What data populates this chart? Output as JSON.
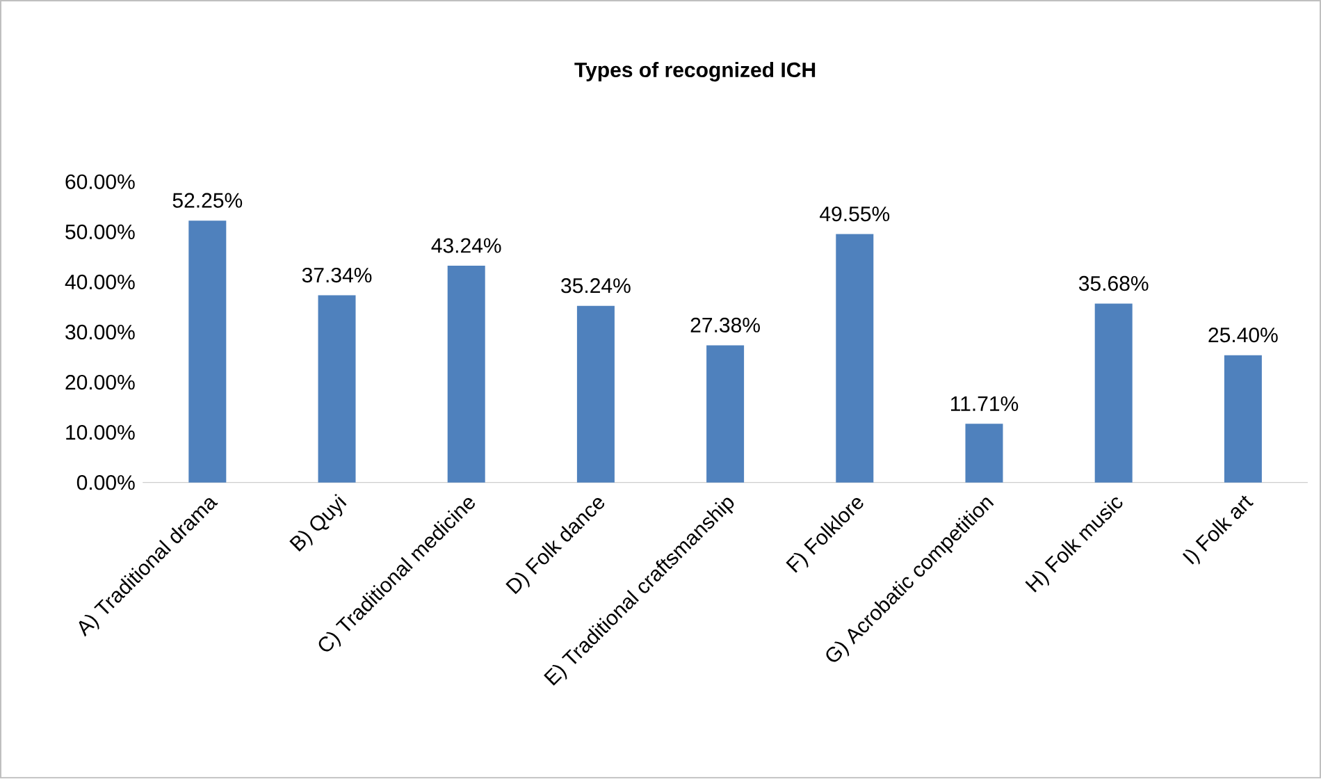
{
  "chart_data": {
    "type": "bar",
    "title": "Types of recognized ICH",
    "categories": [
      "A) Traditional drama",
      "B) Quyi",
      "C) Traditional medicine",
      "D) Folk dance",
      "E) Traditional craftsmanship",
      "F) Folklore",
      "G) Acrobatic competition",
      "H) Folk music",
      "I) Folk art"
    ],
    "values": [
      52.25,
      37.34,
      43.24,
      35.24,
      27.38,
      49.55,
      11.71,
      35.68,
      25.4
    ],
    "value_labels": [
      "52.25%",
      "37.34%",
      "43.24%",
      "35.24%",
      "27.38%",
      "49.55%",
      "11.71%",
      "35.68%",
      "25.40%"
    ],
    "color": "#4f81bd",
    "ylim": [
      0,
      60
    ],
    "yticks": [
      {
        "value": 0,
        "label": "0.00%"
      },
      {
        "value": 10,
        "label": "10.00%"
      },
      {
        "value": 20,
        "label": "20.00%"
      },
      {
        "value": 30,
        "label": "30.00%"
      },
      {
        "value": 40,
        "label": "40.00%"
      },
      {
        "value": 50,
        "label": "50.00%"
      },
      {
        "value": 60,
        "label": "60.00%"
      }
    ],
    "grid": false
  }
}
